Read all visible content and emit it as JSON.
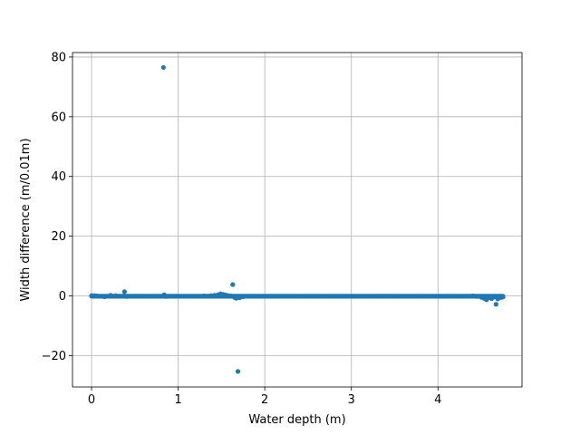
{
  "chart_data": {
    "type": "scatter",
    "title": "",
    "xlabel": "Water depth (m)",
    "ylabel": "Width difference (m/0.01m)",
    "xlim": [
      -0.22,
      4.97
    ],
    "ylim": [
      -30.5,
      81.5
    ],
    "xticks": [
      0,
      1,
      2,
      3,
      4
    ],
    "yticks": [
      -20,
      0,
      20,
      40,
      60,
      80
    ],
    "xtick_labels": [
      "0",
      "1",
      "2",
      "3",
      "4"
    ],
    "ytick_labels": [
      "−20",
      "0",
      "20",
      "40",
      "60",
      "80"
    ],
    "grid": true,
    "marker_color": "#1f77b4",
    "series": [
      {
        "baseline": {
          "x_start": 0.0,
          "x_end": 4.75,
          "x_step": 0.01,
          "y": -0.1
        },
        "points": [
          {
            "x": 0.0,
            "y": 0.1
          },
          {
            "x": 0.03,
            "y": 0.1
          },
          {
            "x": 0.06,
            "y": 0.0
          },
          {
            "x": 0.15,
            "y": -0.3
          },
          {
            "x": 0.22,
            "y": 0.2
          },
          {
            "x": 0.28,
            "y": 0.1
          },
          {
            "x": 0.38,
            "y": 1.4
          },
          {
            "x": 0.41,
            "y": -0.2
          },
          {
            "x": 0.83,
            "y": 76.5
          },
          {
            "x": 0.84,
            "y": 0.4
          },
          {
            "x": 0.86,
            "y": -0.2
          },
          {
            "x": 1.3,
            "y": 0.0
          },
          {
            "x": 1.38,
            "y": 0.1
          },
          {
            "x": 1.42,
            "y": 0.2
          },
          {
            "x": 1.46,
            "y": 0.4
          },
          {
            "x": 1.49,
            "y": 0.7
          },
          {
            "x": 1.52,
            "y": 0.5
          },
          {
            "x": 1.55,
            "y": 0.3
          },
          {
            "x": 1.58,
            "y": 0.1
          },
          {
            "x": 1.61,
            "y": 0.0
          },
          {
            "x": 1.63,
            "y": 3.8
          },
          {
            "x": 1.65,
            "y": -0.5
          },
          {
            "x": 1.67,
            "y": -0.8
          },
          {
            "x": 1.69,
            "y": -25.3
          },
          {
            "x": 1.71,
            "y": -0.6
          },
          {
            "x": 1.75,
            "y": -0.3
          },
          {
            "x": 4.4,
            "y": 0.0
          },
          {
            "x": 4.45,
            "y": -0.2
          },
          {
            "x": 4.5,
            "y": -0.5
          },
          {
            "x": 4.53,
            "y": -0.8
          },
          {
            "x": 4.56,
            "y": -1.3
          },
          {
            "x": 4.59,
            "y": -0.6
          },
          {
            "x": 4.62,
            "y": -0.9
          },
          {
            "x": 4.65,
            "y": -0.4
          },
          {
            "x": 4.67,
            "y": -2.8
          },
          {
            "x": 4.69,
            "y": -1.0
          },
          {
            "x": 4.71,
            "y": -0.6
          },
          {
            "x": 4.73,
            "y": -0.5
          },
          {
            "x": 4.75,
            "y": -0.4
          }
        ]
      }
    ]
  }
}
